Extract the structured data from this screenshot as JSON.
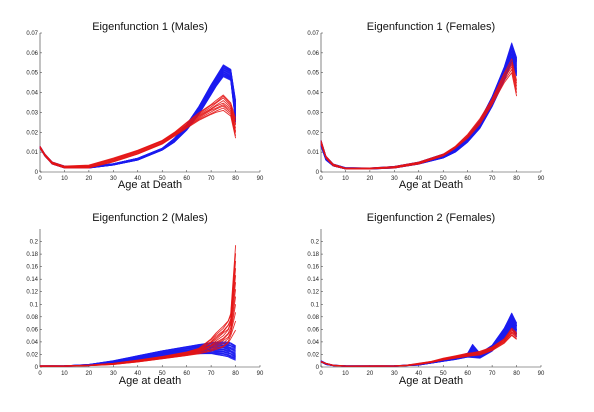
{
  "figure": {
    "background": "#ffffff"
  },
  "series_colors": {
    "red": "#e41414",
    "blue": "#1c1cf0"
  },
  "chart_data": [
    {
      "type": "line",
      "title": "Eigenfunction 1 (Males)",
      "xlabel": "Age at Death",
      "ylabel": "",
      "xlim": [
        0,
        90
      ],
      "ylim": [
        0,
        0.07
      ],
      "xticks": [
        0,
        10,
        20,
        30,
        40,
        50,
        60,
        70,
        80,
        90
      ],
      "yticks": [
        0,
        0.01,
        0.02,
        0.03,
        0.04,
        0.05,
        0.06,
        0.07
      ],
      "ytick_labels": [
        "0",
        "0.01",
        "0.02",
        "0.03",
        "0.04",
        "0.05",
        "0.06",
        "0.07"
      ],
      "x": [
        0,
        2,
        5,
        10,
        20,
        30,
        40,
        50,
        55,
        60,
        65,
        70,
        72,
        75,
        78,
        80
      ],
      "series": [
        {
          "color": "#1c1cf0",
          "count": 30,
          "low": [
            0.012,
            0.008,
            0.004,
            0.002,
            0.002,
            0.0035,
            0.006,
            0.011,
            0.015,
            0.021,
            0.029,
            0.039,
            0.043,
            0.048,
            0.046,
            0.025
          ],
          "high": [
            0.013,
            0.009,
            0.005,
            0.003,
            0.0028,
            0.0042,
            0.007,
            0.012,
            0.017,
            0.024,
            0.033,
            0.044,
            0.048,
            0.054,
            0.052,
            0.036
          ]
        },
        {
          "color": "#e41414",
          "count": 9,
          "low": [
            0.012,
            0.008,
            0.004,
            0.002,
            0.002,
            0.005,
            0.009,
            0.014,
            0.018,
            0.022,
            0.026,
            0.029,
            0.03,
            0.031,
            0.028,
            0.017
          ],
          "high": [
            0.013,
            0.009,
            0.005,
            0.003,
            0.0035,
            0.007,
            0.011,
            0.016,
            0.02,
            0.025,
            0.03,
            0.034,
            0.036,
            0.039,
            0.035,
            0.027
          ]
        }
      ]
    },
    {
      "type": "line",
      "title": "Eigenfunction 1 (Females)",
      "xlabel": "Age at Death",
      "ylabel": "",
      "xlim": [
        0,
        90
      ],
      "ylim": [
        0,
        0.07
      ],
      "xticks": [
        0,
        10,
        20,
        30,
        40,
        50,
        60,
        70,
        80,
        90
      ],
      "yticks": [
        0,
        0.01,
        0.02,
        0.03,
        0.04,
        0.05,
        0.06,
        0.07
      ],
      "ytick_labels": [
        "0",
        "0.01",
        "0.02",
        "0.03",
        "0.04",
        "0.05",
        "0.06",
        "0.07"
      ],
      "x": [
        0,
        2,
        5,
        10,
        20,
        30,
        40,
        50,
        55,
        60,
        65,
        70,
        75,
        78,
        80
      ],
      "series": [
        {
          "color": "#1c1cf0",
          "count": 30,
          "low": [
            0.013,
            0.006,
            0.003,
            0.0015,
            0.0015,
            0.002,
            0.004,
            0.007,
            0.01,
            0.015,
            0.022,
            0.033,
            0.046,
            0.055,
            0.048
          ],
          "high": [
            0.016,
            0.008,
            0.004,
            0.0022,
            0.002,
            0.0028,
            0.005,
            0.009,
            0.012,
            0.018,
            0.026,
            0.038,
            0.053,
            0.065,
            0.058
          ]
        },
        {
          "color": "#e41414",
          "count": 6,
          "low": [
            0.014,
            0.007,
            0.003,
            0.0015,
            0.0015,
            0.002,
            0.004,
            0.008,
            0.012,
            0.017,
            0.024,
            0.034,
            0.045,
            0.05,
            0.038
          ],
          "high": [
            0.016,
            0.008,
            0.004,
            0.002,
            0.002,
            0.0028,
            0.005,
            0.009,
            0.013,
            0.019,
            0.027,
            0.037,
            0.05,
            0.057,
            0.046
          ]
        }
      ]
    },
    {
      "type": "line",
      "title": "Eigenfunction 2 (Males)",
      "xlabel": "Age at death",
      "ylabel": "",
      "xlim": [
        0,
        90
      ],
      "ylim": [
        0,
        0.22
      ],
      "xticks": [
        0,
        10,
        20,
        30,
        40,
        50,
        60,
        70,
        80,
        90
      ],
      "yticks": [
        0,
        0.02,
        0.04,
        0.06,
        0.08,
        0.1,
        0.12,
        0.14,
        0.16,
        0.18,
        0.2
      ],
      "ytick_labels": [
        "0",
        "0.02",
        "0.04",
        "0.06",
        "0.08",
        "0.1",
        "0.12",
        "0.14",
        "0.16",
        "0.18",
        "0.2"
      ],
      "x": [
        0,
        5,
        10,
        20,
        30,
        40,
        50,
        60,
        65,
        70,
        72,
        75,
        77,
        78,
        80
      ],
      "series": [
        {
          "color": "#1c1cf0",
          "count": 28,
          "low": [
            0.001,
            0.001,
            0.001,
            0.002,
            0.006,
            0.011,
            0.016,
            0.02,
            0.021,
            0.021,
            0.02,
            0.018,
            0.016,
            0.014,
            0.01
          ],
          "high": [
            0.002,
            0.002,
            0.002,
            0.004,
            0.01,
            0.018,
            0.026,
            0.033,
            0.036,
            0.039,
            0.04,
            0.04,
            0.04,
            0.039,
            0.035
          ]
        },
        {
          "color": "#e41414",
          "count": 12,
          "low": [
            0.001,
            0.001,
            0.001,
            0.002,
            0.004,
            0.008,
            0.013,
            0.018,
            0.021,
            0.025,
            0.028,
            0.032,
            0.038,
            0.045,
            0.055
          ],
          "high": [
            0.002,
            0.002,
            0.002,
            0.003,
            0.006,
            0.011,
            0.017,
            0.024,
            0.03,
            0.045,
            0.055,
            0.065,
            0.075,
            0.085,
            0.2
          ]
        }
      ]
    },
    {
      "type": "line",
      "title": "Eigenfunction 2 (Females)",
      "xlabel": "Age at Death",
      "ylabel": "",
      "xlim": [
        0,
        90
      ],
      "ylim": [
        0,
        0.22
      ],
      "xticks": [
        0,
        10,
        20,
        30,
        40,
        50,
        60,
        70,
        80,
        90
      ],
      "yticks": [
        0,
        0.02,
        0.04,
        0.06,
        0.08,
        0.1,
        0.12,
        0.14,
        0.16,
        0.18,
        0.2
      ],
      "ytick_labels": [
        "0",
        "0.02",
        "0.04",
        "0.06",
        "0.08",
        "0.1",
        "0.12",
        "0.14",
        "0.16",
        "0.18",
        "0.2"
      ],
      "x": [
        0,
        2,
        5,
        10,
        20,
        30,
        35,
        40,
        45,
        50,
        55,
        60,
        62,
        65,
        70,
        75,
        78,
        80
      ],
      "series": [
        {
          "color": "#1c1cf0",
          "count": 28,
          "low": [
            0.008,
            0.004,
            0.002,
            0.001,
            0.001,
            0.001,
            0.002,
            0.003,
            0.006,
            0.009,
            0.012,
            0.016,
            0.015,
            0.014,
            0.025,
            0.045,
            0.062,
            0.048
          ],
          "high": [
            0.01,
            0.006,
            0.003,
            0.002,
            0.002,
            0.002,
            0.003,
            0.005,
            0.008,
            0.012,
            0.016,
            0.022,
            0.036,
            0.022,
            0.035,
            0.062,
            0.086,
            0.07
          ]
        },
        {
          "color": "#e41414",
          "count": 8,
          "low": [
            0.008,
            0.005,
            0.002,
            0.001,
            0.001,
            0.001,
            0.002,
            0.004,
            0.007,
            0.011,
            0.014,
            0.017,
            0.018,
            0.019,
            0.026,
            0.038,
            0.05,
            0.044
          ],
          "high": [
            0.009,
            0.006,
            0.003,
            0.002,
            0.002,
            0.002,
            0.003,
            0.006,
            0.009,
            0.014,
            0.018,
            0.022,
            0.023,
            0.025,
            0.032,
            0.045,
            0.062,
            0.055
          ]
        }
      ]
    }
  ]
}
